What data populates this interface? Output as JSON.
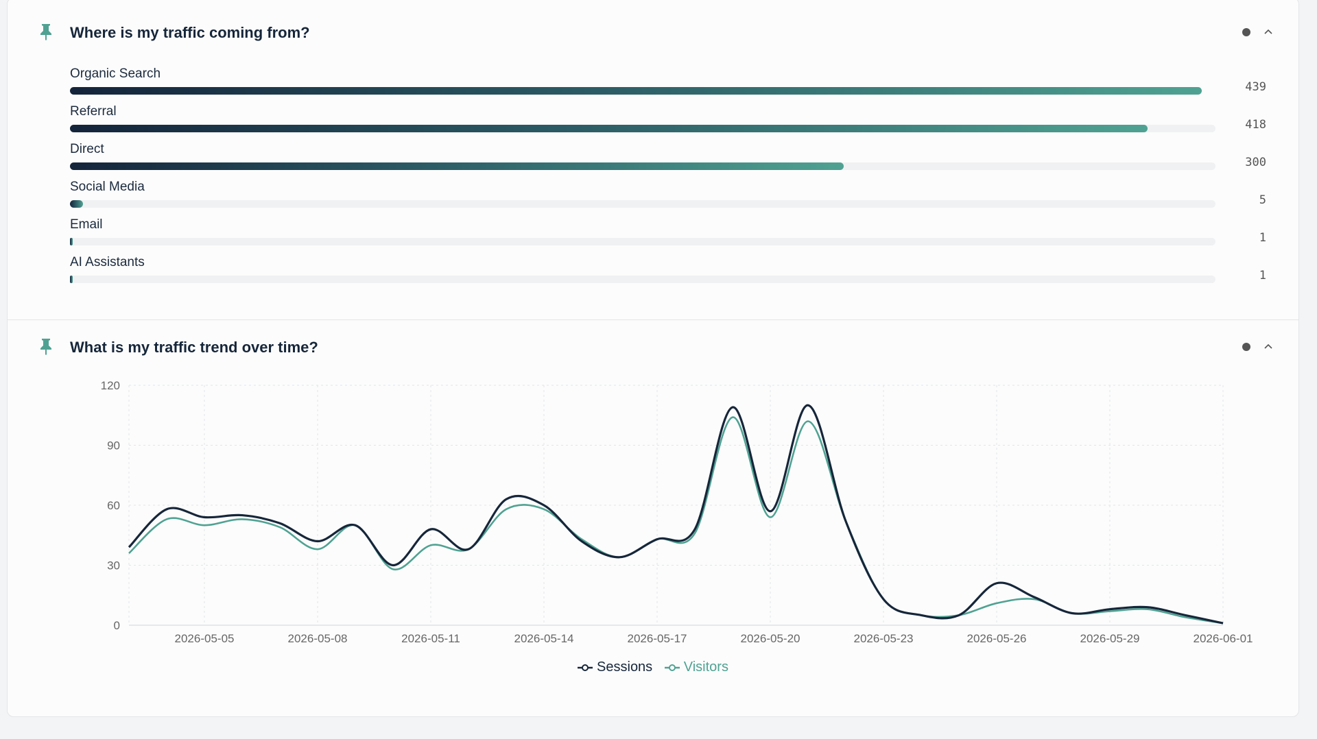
{
  "traffic_sources": {
    "title": "Where is my traffic coming from?",
    "max": 439,
    "items": [
      {
        "label": "Organic Search",
        "value": 439
      },
      {
        "label": "Referral",
        "value": 418
      },
      {
        "label": "Direct",
        "value": 300
      },
      {
        "label": "Social Media",
        "value": 5
      },
      {
        "label": "Email",
        "value": 1
      },
      {
        "label": "AI Assistants",
        "value": 1
      }
    ]
  },
  "traffic_trend": {
    "title": "What is my traffic trend over time?"
  },
  "chart_data": {
    "type": "line",
    "ylim": [
      0,
      120
    ],
    "yticks": [
      0,
      30,
      60,
      90,
      120
    ],
    "x": [
      "2026-05-03",
      "2026-05-04",
      "2026-05-05",
      "2026-05-06",
      "2026-05-07",
      "2026-05-08",
      "2026-05-09",
      "2026-05-10",
      "2026-05-11",
      "2026-05-12",
      "2026-05-13",
      "2026-05-14",
      "2026-05-15",
      "2026-05-16",
      "2026-05-17",
      "2026-05-18",
      "2026-05-19",
      "2026-05-20",
      "2026-05-21",
      "2026-05-22",
      "2026-05-23",
      "2026-05-24",
      "2026-05-25",
      "2026-05-26",
      "2026-05-27",
      "2026-05-28",
      "2026-05-29",
      "2026-05-30",
      "2026-05-31",
      "2026-06-01"
    ],
    "xtick_labels": [
      "2026-05-05",
      "2026-05-08",
      "2026-05-11",
      "2026-05-14",
      "2026-05-17",
      "2026-05-20",
      "2026-05-23",
      "2026-05-26",
      "2026-05-29",
      "2026-06-01"
    ],
    "grid": true,
    "legend_position": "bottom",
    "series": [
      {
        "name": "Sessions",
        "color": "#16263a",
        "values": [
          39,
          58,
          54,
          55,
          51,
          42,
          50,
          30,
          48,
          38,
          63,
          60,
          42,
          34,
          43,
          48,
          109,
          57,
          110,
          52,
          13,
          5,
          5,
          21,
          14,
          6,
          8,
          9,
          5,
          1
        ]
      },
      {
        "name": "Visitors",
        "color": "#4fa292",
        "values": [
          36,
          53,
          50,
          53,
          49,
          38,
          50,
          28,
          40,
          38,
          58,
          58,
          43,
          34,
          43,
          46,
          104,
          54,
          102,
          52,
          13,
          5,
          5,
          11,
          13,
          6,
          7,
          8,
          4,
          1
        ]
      }
    ]
  },
  "colors": {
    "accent": "#4fa292",
    "dark": "#16263a"
  }
}
